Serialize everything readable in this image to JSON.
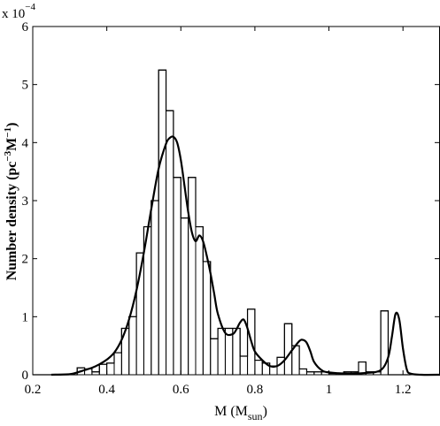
{
  "chart_data": {
    "type": "bar",
    "xlabel": {
      "main": "M (M",
      "sub": "sun",
      "close": ")"
    },
    "ylabel": {
      "main": "Number density (pc",
      "sup1": "−3",
      "mid": "M",
      "sup2": "−1",
      "close": ")"
    },
    "y_multiplier": {
      "base": "x 10",
      "exp": "−4"
    },
    "xlim": [
      0.2,
      1.3
    ],
    "ylim": [
      0,
      6
    ],
    "x_ticks": [
      {
        "value": 0.2,
        "label": "0.2"
      },
      {
        "value": 0.4,
        "label": "0.4"
      },
      {
        "value": 0.6,
        "label": "0.6"
      },
      {
        "value": 0.8,
        "label": "0.8"
      },
      {
        "value": 1.0,
        "label": "1"
      },
      {
        "value": 1.2,
        "label": "1.2"
      }
    ],
    "y_ticks": [
      {
        "value": 0,
        "label": "0"
      },
      {
        "value": 1,
        "label": "1"
      },
      {
        "value": 2,
        "label": "2"
      },
      {
        "value": 3,
        "label": "3"
      },
      {
        "value": 4,
        "label": "4"
      },
      {
        "value": 5,
        "label": "5"
      },
      {
        "value": 6,
        "label": "6"
      }
    ],
    "histogram": {
      "bin_edges": [
        0.2,
        0.22,
        0.24,
        0.26,
        0.28,
        0.3,
        0.32,
        0.34,
        0.36,
        0.38,
        0.4,
        0.42,
        0.44,
        0.46,
        0.48,
        0.5,
        0.52,
        0.54,
        0.56,
        0.58,
        0.6,
        0.62,
        0.64,
        0.66,
        0.68,
        0.7,
        0.72,
        0.74,
        0.76,
        0.78,
        0.8,
        0.82,
        0.84,
        0.86,
        0.88,
        0.9,
        0.92,
        0.94,
        0.96,
        0.98,
        1.0,
        1.02,
        1.04,
        1.06,
        1.08,
        1.1,
        1.12,
        1.14,
        1.16,
        1.18,
        1.2,
        1.22
      ],
      "values": [
        0,
        0,
        0,
        0,
        0,
        0,
        0.12,
        0.1,
        0.05,
        0.18,
        0.2,
        0.38,
        0.8,
        1.0,
        2.1,
        2.55,
        3.0,
        5.25,
        4.55,
        3.4,
        2.7,
        3.4,
        2.55,
        1.95,
        0.62,
        0.8,
        0.8,
        0.8,
        0.32,
        1.13,
        0.25,
        0.2,
        0.15,
        0.3,
        0.88,
        0.5,
        0.1,
        0.05,
        0.05,
        0.05,
        0.02,
        0.02,
        0.05,
        0.05,
        0.22,
        0.05,
        0.05,
        1.1,
        0.0,
        0.0,
        0.0
      ]
    },
    "kde_curve": {
      "x": [
        0.25,
        0.3,
        0.32,
        0.34,
        0.36,
        0.38,
        0.4,
        0.42,
        0.44,
        0.46,
        0.48,
        0.5,
        0.52,
        0.54,
        0.56,
        0.57,
        0.58,
        0.59,
        0.6,
        0.61,
        0.62,
        0.63,
        0.64,
        0.65,
        0.66,
        0.67,
        0.68,
        0.69,
        0.7,
        0.72,
        0.74,
        0.75,
        0.76,
        0.77,
        0.78,
        0.79,
        0.8,
        0.82,
        0.84,
        0.86,
        0.88,
        0.9,
        0.92,
        0.93,
        0.94,
        0.95,
        0.96,
        0.98,
        1.0,
        1.05,
        1.1,
        1.14,
        1.16,
        1.17,
        1.18,
        1.19,
        1.2,
        1.21,
        1.22,
        1.25,
        1.3
      ],
      "y": [
        0.0,
        0.01,
        0.04,
        0.08,
        0.12,
        0.18,
        0.26,
        0.38,
        0.6,
        0.95,
        1.45,
        2.1,
        2.85,
        3.55,
        3.98,
        4.08,
        4.1,
        4.0,
        3.7,
        3.25,
        2.8,
        2.45,
        2.3,
        2.4,
        2.3,
        2.05,
        1.75,
        1.4,
        1.05,
        0.72,
        0.7,
        0.78,
        0.9,
        0.95,
        0.8,
        0.58,
        0.4,
        0.25,
        0.15,
        0.15,
        0.25,
        0.42,
        0.58,
        0.6,
        0.55,
        0.4,
        0.22,
        0.08,
        0.04,
        0.02,
        0.03,
        0.08,
        0.3,
        0.65,
        1.05,
        0.95,
        0.45,
        0.1,
        0.02,
        0.0,
        0.0
      ]
    }
  }
}
